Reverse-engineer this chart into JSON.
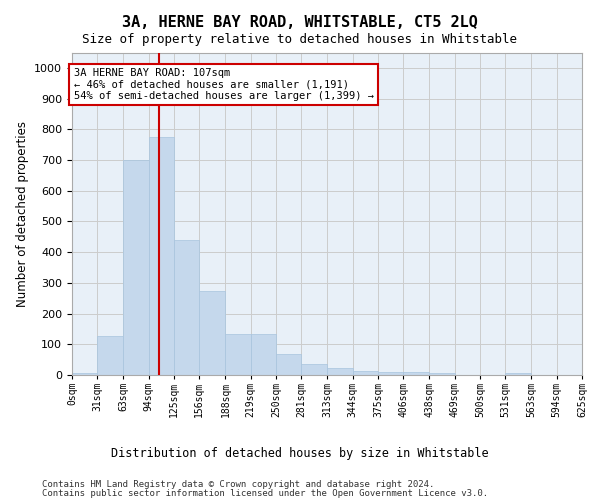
{
  "title": "3A, HERNE BAY ROAD, WHITSTABLE, CT5 2LQ",
  "subtitle": "Size of property relative to detached houses in Whitstable",
  "xlabel": "Distribution of detached houses by size in Whitstable",
  "ylabel": "Number of detached properties",
  "bar_color": "#c5d8ec",
  "bar_edge_color": "#a8c4dd",
  "grid_color": "#cccccc",
  "bg_color": "#e8f0f8",
  "vline_x": 107,
  "vline_color": "#cc0000",
  "annotation_text": "3A HERNE BAY ROAD: 107sqm\n← 46% of detached houses are smaller (1,191)\n54% of semi-detached houses are larger (1,399) →",
  "annotation_box_color": "#ffffff",
  "annotation_box_edge": "#cc0000",
  "bins": [
    0,
    31,
    63,
    94,
    125,
    156,
    188,
    219,
    250,
    281,
    313,
    344,
    375,
    406,
    438,
    469,
    500,
    531,
    563,
    594,
    625
  ],
  "bin_labels": [
    "0sqm",
    "31sqm",
    "63sqm",
    "94sqm",
    "125sqm",
    "156sqm",
    "188sqm",
    "219sqm",
    "250sqm",
    "281sqm",
    "313sqm",
    "344sqm",
    "375sqm",
    "406sqm",
    "438sqm",
    "469sqm",
    "500sqm",
    "531sqm",
    "563sqm",
    "594sqm",
    "625sqm"
  ],
  "counts": [
    7,
    128,
    700,
    775,
    440,
    275,
    133,
    133,
    70,
    37,
    23,
    12,
    10,
    10,
    7,
    0,
    0,
    8,
    0,
    0
  ],
  "ylim": [
    0,
    1050
  ],
  "yticks": [
    0,
    100,
    200,
    300,
    400,
    500,
    600,
    700,
    800,
    900,
    1000
  ],
  "footer1": "Contains HM Land Registry data © Crown copyright and database right 2024.",
  "footer2": "Contains public sector information licensed under the Open Government Licence v3.0."
}
